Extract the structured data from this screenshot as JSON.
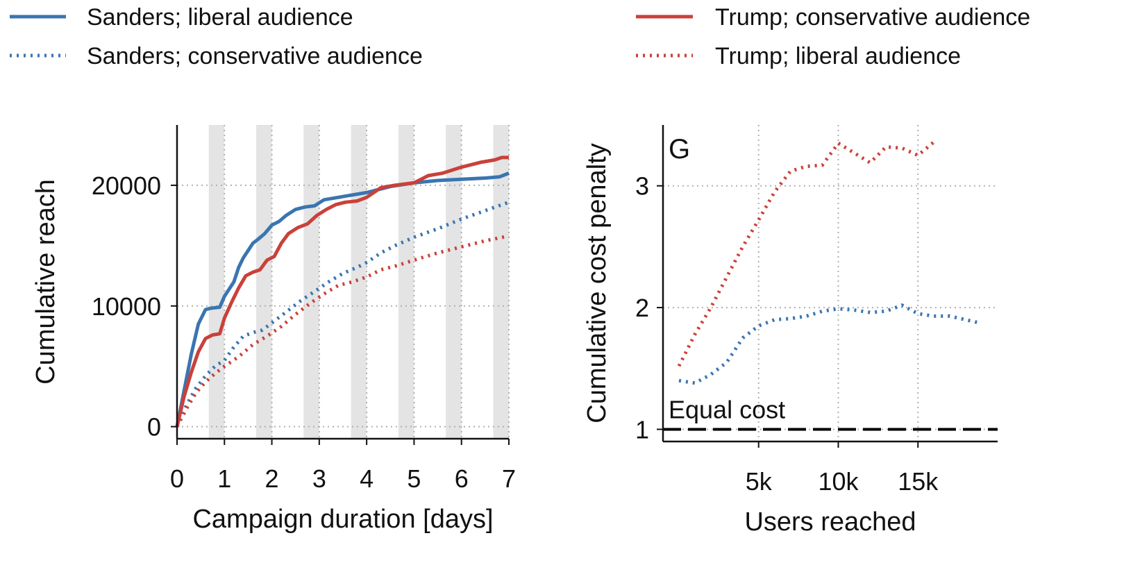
{
  "legend": [
    {
      "name": "Sanders; liberal audience",
      "color": "#3a75b0",
      "style": "solid"
    },
    {
      "name": "Sanders; conservative audience",
      "color": "#3a75b0",
      "style": "dotted"
    },
    {
      "name": "Trump; conservative audience",
      "color": "#c9413a",
      "style": "solid"
    },
    {
      "name": "Trump; liberal audience",
      "color": "#c9413a",
      "style": "dotted"
    }
  ],
  "chart_data": [
    {
      "type": "line",
      "xlabel": "Campaign duration [days]",
      "ylabel": "Cumulative reach",
      "xlim": [
        0,
        7
      ],
      "ylim": [
        -1000,
        25000
      ],
      "xticks": [
        0,
        1,
        2,
        3,
        4,
        5,
        6,
        7
      ],
      "xtick_labels": [
        "0",
        "1",
        "2",
        "3",
        "4",
        "5",
        "6",
        "7"
      ],
      "yticks": [
        0,
        10000,
        20000
      ],
      "ytick_labels": [
        "0",
        "10000",
        "20000"
      ],
      "grid": true,
      "shaded_intervals": [
        [
          0.67,
          1.0
        ],
        [
          1.67,
          2.0
        ],
        [
          2.67,
          3.0
        ],
        [
          3.67,
          4.0
        ],
        [
          4.67,
          5.0
        ],
        [
          5.67,
          6.0
        ],
        [
          6.67,
          7.0
        ]
      ],
      "series": [
        {
          "name": "Sanders; liberal audience",
          "color": "#3a75b0",
          "style": "solid",
          "x": [
            0,
            0.15,
            0.3,
            0.45,
            0.6,
            0.7,
            0.9,
            1.0,
            1.2,
            1.3,
            1.4,
            1.6,
            1.7,
            1.85,
            2.0,
            2.15,
            2.3,
            2.5,
            2.7,
            2.9,
            3.1,
            3.4,
            3.7,
            4.0,
            4.5,
            5.0,
            5.5,
            6.0,
            6.5,
            6.8,
            7.0
          ],
          "y": [
            0,
            3000,
            6000,
            8500,
            9700,
            9800,
            9900,
            10800,
            12000,
            13200,
            14000,
            15200,
            15500,
            16000,
            16700,
            17000,
            17500,
            18000,
            18200,
            18300,
            18800,
            19000,
            19200,
            19400,
            19900,
            20200,
            20400,
            20500,
            20600,
            20700,
            21000
          ]
        },
        {
          "name": "Trump; conservative audience",
          "color": "#c9413a",
          "style": "solid",
          "x": [
            0,
            0.15,
            0.3,
            0.45,
            0.6,
            0.75,
            0.9,
            1.0,
            1.15,
            1.3,
            1.45,
            1.6,
            1.75,
            1.9,
            2.05,
            2.2,
            2.35,
            2.55,
            2.75,
            2.95,
            3.15,
            3.35,
            3.55,
            3.8,
            4.0,
            4.3,
            4.6,
            5.0,
            5.3,
            5.6,
            6.0,
            6.4,
            6.7,
            6.85,
            7.0
          ],
          "y": [
            0,
            2500,
            4500,
            6200,
            7300,
            7600,
            7700,
            9000,
            10300,
            11500,
            12500,
            12800,
            13000,
            13800,
            14100,
            15200,
            16000,
            16500,
            16800,
            17500,
            18000,
            18400,
            18600,
            18700,
            19000,
            19800,
            20000,
            20200,
            20800,
            21000,
            21500,
            21900,
            22100,
            22300,
            22300
          ]
        },
        {
          "name": "Sanders; conservative audience",
          "color": "#3a75b0",
          "style": "dotted",
          "x": [
            0,
            0.2,
            0.4,
            0.6,
            0.8,
            1.0,
            1.2,
            1.4,
            1.6,
            1.8,
            2.0,
            2.3,
            2.6,
            2.9,
            3.2,
            3.5,
            3.8,
            4.0,
            4.3,
            4.6,
            5.0,
            5.5,
            6.0,
            6.5,
            7.0
          ],
          "y": [
            0,
            1800,
            3200,
            4200,
            5000,
            5500,
            6600,
            7500,
            7800,
            8000,
            8600,
            9500,
            10400,
            11200,
            12000,
            12700,
            13200,
            13600,
            14400,
            15000,
            15700,
            16400,
            17200,
            17900,
            18600
          ]
        },
        {
          "name": "Trump; liberal audience",
          "color": "#c9413a",
          "style": "dotted",
          "x": [
            0,
            0.2,
            0.4,
            0.6,
            0.8,
            1.0,
            1.3,
            1.6,
            1.9,
            2.2,
            2.5,
            2.8,
            3.1,
            3.4,
            3.7,
            4.0,
            4.3,
            4.6,
            5.0,
            5.5,
            6.0,
            6.5,
            7.0
          ],
          "y": [
            0,
            1500,
            2800,
            3700,
            4400,
            5000,
            5800,
            6800,
            7500,
            8300,
            9300,
            10200,
            11000,
            11700,
            12000,
            12400,
            13000,
            13300,
            13800,
            14400,
            14900,
            15400,
            15800
          ]
        }
      ]
    },
    {
      "type": "line",
      "panel_label": "G",
      "xlabel": "Users reached",
      "ylabel": "Cumulative cost penalty",
      "xlim": [
        -1000,
        20000
      ],
      "ylim": [
        0.9,
        3.5
      ],
      "xticks": [
        5000,
        10000,
        15000
      ],
      "xtick_labels": [
        "5k",
        "10k",
        "15k"
      ],
      "yticks": [
        1,
        2,
        3
      ],
      "ytick_labels": [
        "1",
        "2",
        "3"
      ],
      "grid": true,
      "reference_line": {
        "y": 1,
        "label": "Equal cost",
        "color": "#000000",
        "style": "dashed"
      },
      "series": [
        {
          "name": "Trump; liberal audience",
          "color": "#c9413a",
          "style": "dotted",
          "x": [
            0,
            1000,
            2000,
            3000,
            4000,
            5000,
            6000,
            7000,
            8000,
            9000,
            10000,
            11000,
            12000,
            13000,
            14000,
            15000,
            16000
          ],
          "y": [
            1.52,
            1.78,
            2.0,
            2.25,
            2.5,
            2.72,
            2.95,
            3.12,
            3.16,
            3.17,
            3.35,
            3.27,
            3.19,
            3.32,
            3.31,
            3.25,
            3.36
          ]
        },
        {
          "name": "Sanders; conservative audience",
          "color": "#3a75b0",
          "style": "dotted",
          "x": [
            0,
            1000,
            2000,
            3000,
            4000,
            5000,
            6000,
            7000,
            8000,
            9000,
            10000,
            11000,
            12000,
            13000,
            14000,
            15000,
            16000,
            17000,
            18000,
            19000
          ],
          "y": [
            1.4,
            1.38,
            1.45,
            1.55,
            1.75,
            1.85,
            1.9,
            1.91,
            1.93,
            1.97,
            1.99,
            1.98,
            1.96,
            1.97,
            2.02,
            1.95,
            1.93,
            1.93,
            1.9,
            1.87
          ]
        }
      ]
    }
  ]
}
